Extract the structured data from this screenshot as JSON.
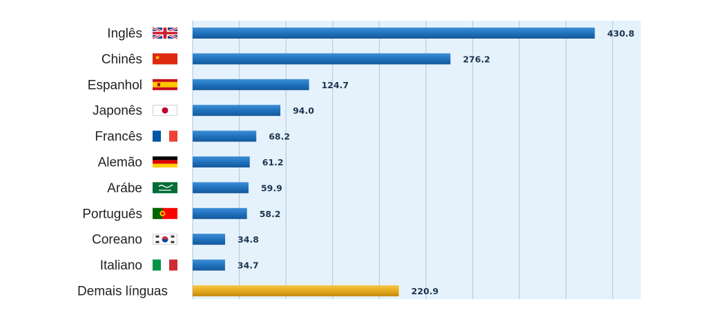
{
  "chart_data": {
    "type": "bar",
    "orientation": "horizontal",
    "title": "",
    "xlabel": "",
    "ylabel": "",
    "categories": [
      "Inglês",
      "Chinês",
      "Espanhol",
      "Japonês",
      "Francês",
      "Alemão",
      "Arábe",
      "Português",
      "Coreano",
      "Italiano",
      "Demais línguas"
    ],
    "values": [
      430.8,
      276.2,
      124.7,
      94.0,
      68.2,
      61.2,
      59.9,
      58.2,
      34.8,
      34.7,
      220.9
    ],
    "value_labels": [
      "430.8",
      "276.2",
      "124.7",
      "94.0",
      "68.2",
      "61.2",
      "59.9",
      "58.2",
      "34.8",
      "34.7",
      "220.9"
    ],
    "flags": [
      "uk-flag-icon",
      "china-flag-icon",
      "spain-flag-icon",
      "japan-flag-icon",
      "france-flag-icon",
      "germany-flag-icon",
      "saudi-arabia-flag-icon",
      "portugal-flag-icon",
      "south-korea-flag-icon",
      "italy-flag-icon",
      ""
    ],
    "xlim": [
      0,
      480
    ],
    "grid": true,
    "legend": "none",
    "colors": {
      "bar": "#1f72bd",
      "bar_highlight": "#e6a91e",
      "plot_background": "#e6f2fb",
      "grid": "#b2cee6"
    }
  }
}
